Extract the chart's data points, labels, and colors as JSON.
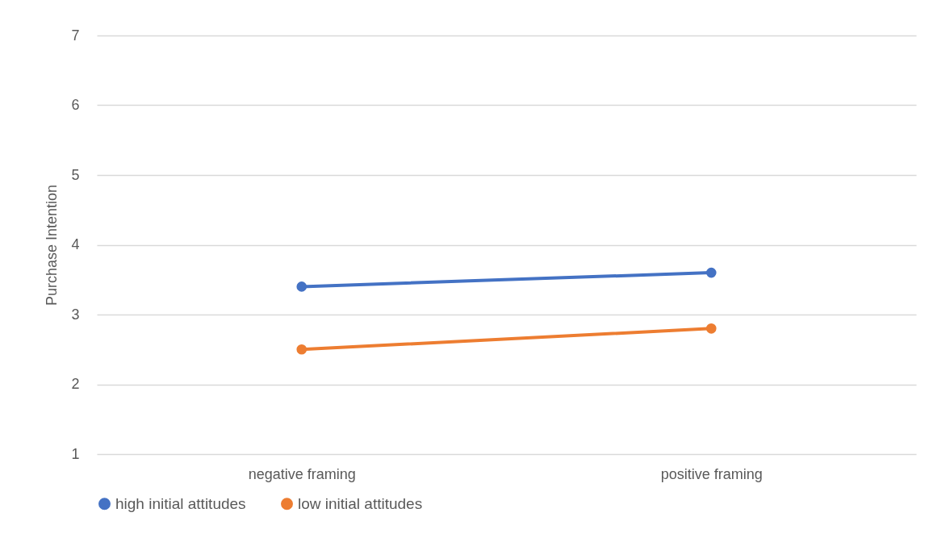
{
  "chart_data": {
    "type": "line",
    "ylabel": "Purchase Intention",
    "categories": [
      "negative framing",
      "positive framing"
    ],
    "series": [
      {
        "name": "high initial attitudes",
        "color": "#4472c4",
        "values": [
          3.4,
          3.6
        ]
      },
      {
        "name": "low initial attitudes",
        "color": "#ed7d31",
        "values": [
          2.5,
          2.8
        ]
      }
    ],
    "ylim": [
      1,
      7
    ],
    "yticks": [
      1,
      2,
      3,
      4,
      5,
      6,
      7
    ],
    "grid": "y",
    "legend": "bottom",
    "marker": "circle",
    "line_style": "solid"
  }
}
